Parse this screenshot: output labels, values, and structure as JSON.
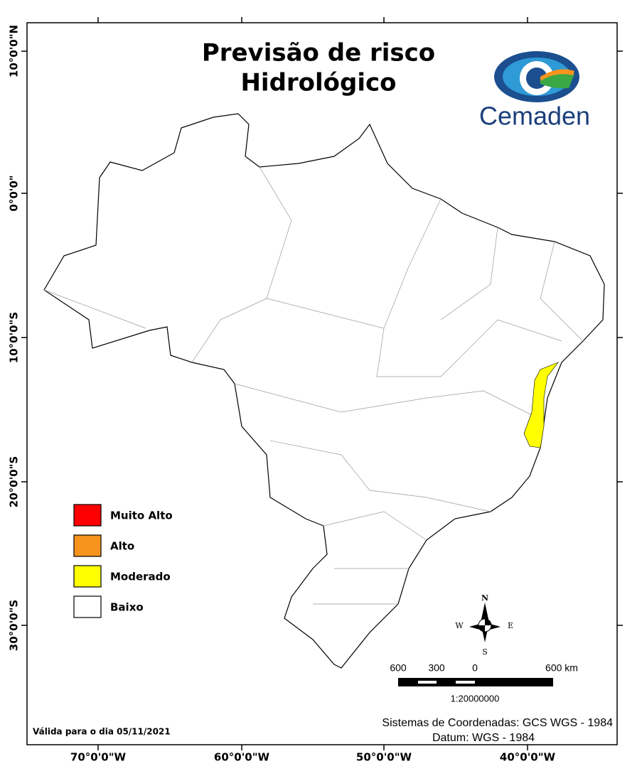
{
  "title": [
    "Previsão de risco",
    "Hidrológico"
  ],
  "logo": "Cemaden",
  "legend": [
    {
      "label": "Muito Alto",
      "color": "#ff0000"
    },
    {
      "label": "Alto",
      "color": "#f7941d"
    },
    {
      "label": "Moderado",
      "color": "#ffff00"
    },
    {
      "label": "Baixo",
      "color": "#ffffff"
    }
  ],
  "axes": {
    "left": [
      "10°0'0\"N",
      "0°0'0\"",
      "10°0'0\"S",
      "20°0'0\"S",
      "30°0'0\"S"
    ],
    "bottom": [
      "70°0'0\"W",
      "60°0'0\"W",
      "50°0'0\"W",
      "40°0'0\"W"
    ]
  },
  "compass": {
    "n": "N",
    "s": "S",
    "e": "E",
    "w": "W"
  },
  "scale_bar": {
    "labels": [
      "600",
      "300",
      "0",
      "600 km"
    ],
    "ratio": "1:20000000"
  },
  "coordinate_system": "Sistemas de Coordenadas: GCS WGS - 1984",
  "datum": "Datum: WGS - 1984",
  "validity": "Válida para o dia 05/11/2021"
}
